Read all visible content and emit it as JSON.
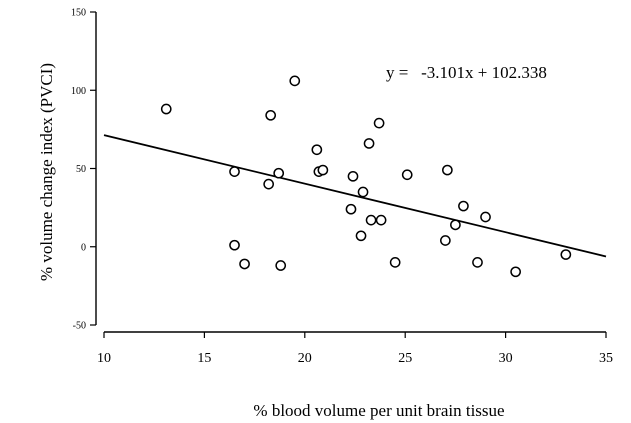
{
  "chart_data": {
    "type": "scatter",
    "title": "",
    "xlabel": "% blood volume per unit brain tissue",
    "ylabel": "% volume change index (PVCI)",
    "xlim": [
      10,
      35
    ],
    "ylim": [
      -50,
      150
    ],
    "x_ticks": [
      10,
      15,
      20,
      25,
      30,
      35
    ],
    "y_ticks": [
      -50,
      0,
      50,
      100,
      150
    ],
    "x_tick_labels": [
      "10",
      "15",
      "20",
      "25",
      "30",
      "35"
    ],
    "y_tick_labels": [
      "-50",
      "0",
      "50",
      "100",
      "150"
    ],
    "grid": false,
    "legend": "none",
    "annotation": "y =   -3.101x + 102.338",
    "regression": {
      "slope": -3.101,
      "intercept": 102.338,
      "x_range": [
        10,
        35
      ]
    },
    "series": [
      {
        "points": [
          {
            "x": 13.1,
            "y": 88
          },
          {
            "x": 16.5,
            "y": 48
          },
          {
            "x": 16.5,
            "y": 1
          },
          {
            "x": 17.0,
            "y": -11
          },
          {
            "x": 18.2,
            "y": 40
          },
          {
            "x": 18.3,
            "y": 84
          },
          {
            "x": 18.7,
            "y": 47
          },
          {
            "x": 18.8,
            "y": -12
          },
          {
            "x": 19.5,
            "y": 106
          },
          {
            "x": 20.6,
            "y": 62
          },
          {
            "x": 20.7,
            "y": 48
          },
          {
            "x": 20.9,
            "y": 49
          },
          {
            "x": 22.3,
            "y": 24
          },
          {
            "x": 22.4,
            "y": 45
          },
          {
            "x": 22.8,
            "y": 7
          },
          {
            "x": 22.9,
            "y": 35
          },
          {
            "x": 23.2,
            "y": 66
          },
          {
            "x": 23.3,
            "y": 17
          },
          {
            "x": 23.7,
            "y": 79
          },
          {
            "x": 23.8,
            "y": 17
          },
          {
            "x": 24.5,
            "y": -10
          },
          {
            "x": 25.1,
            "y": 46
          },
          {
            "x": 27.0,
            "y": 4
          },
          {
            "x": 27.1,
            "y": 49
          },
          {
            "x": 27.5,
            "y": 14
          },
          {
            "x": 27.9,
            "y": 26
          },
          {
            "x": 28.6,
            "y": -10
          },
          {
            "x": 29.0,
            "y": 19
          },
          {
            "x": 30.5,
            "y": -16
          },
          {
            "x": 33.0,
            "y": -5
          }
        ]
      }
    ]
  }
}
